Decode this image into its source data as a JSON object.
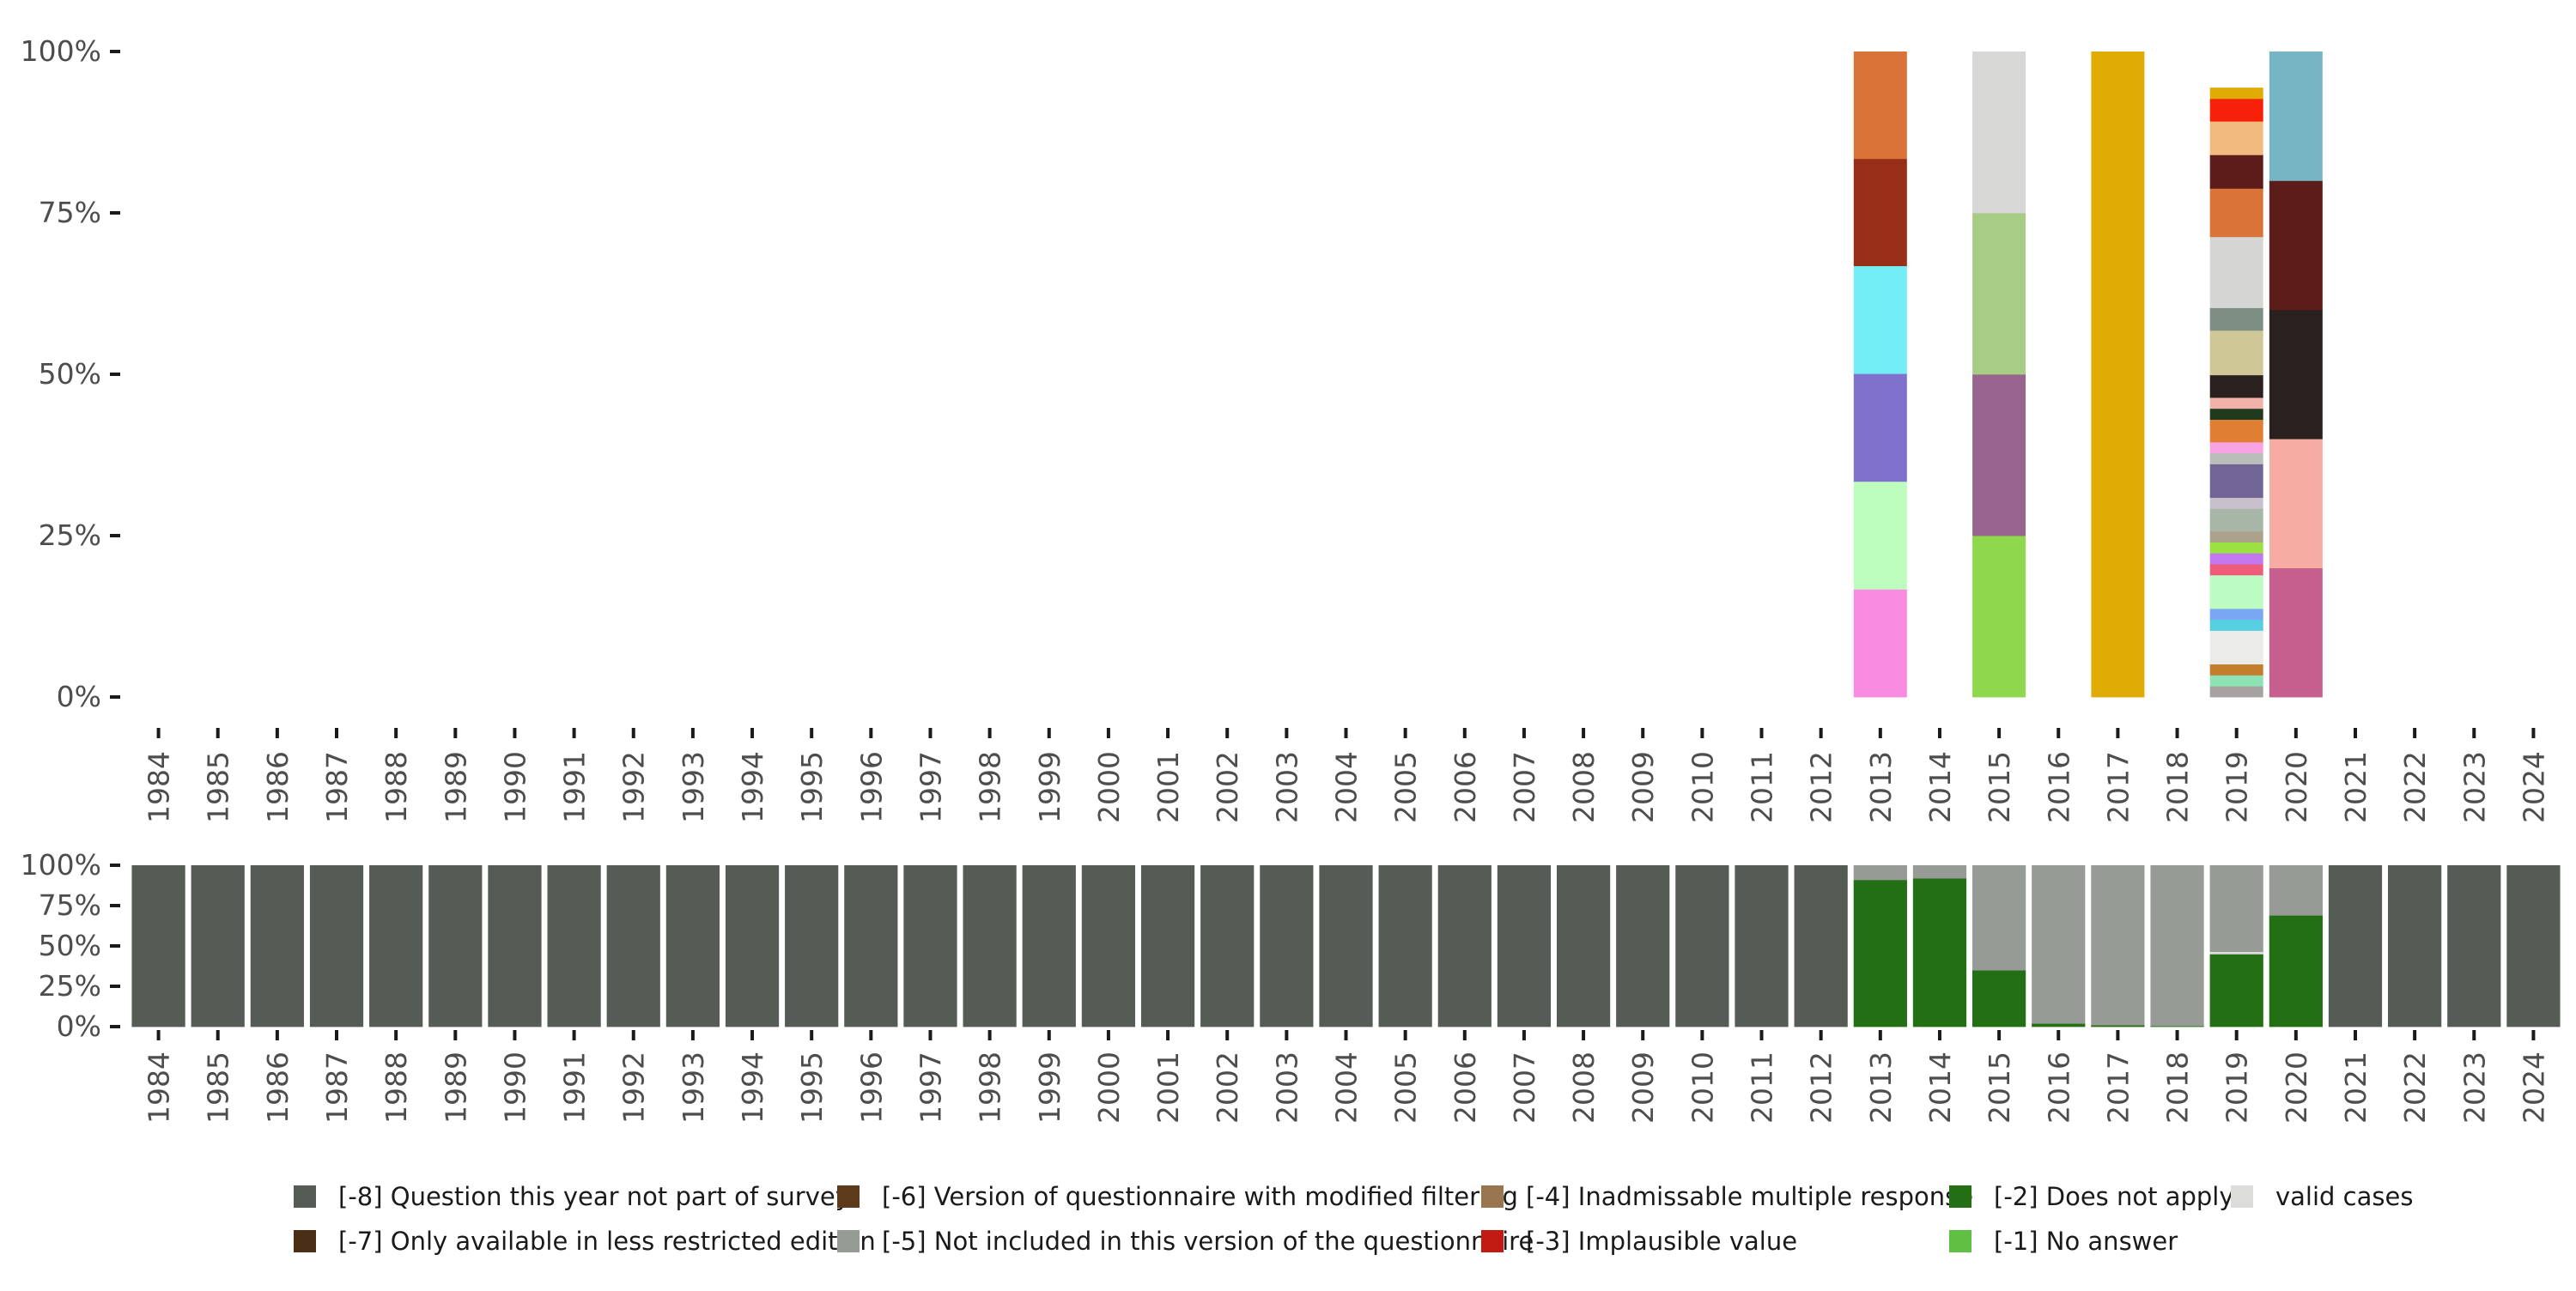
{
  "chart_data": [
    {
      "type": "bar",
      "stacked": true,
      "normalized": true,
      "ylim": [
        0,
        1
      ],
      "y_ticks": [
        "0%",
        "25%",
        "50%",
        "75%",
        "100%"
      ],
      "years": [
        "1984",
        "1985",
        "1986",
        "1987",
        "1988",
        "1989",
        "1990",
        "1991",
        "1992",
        "1993",
        "1994",
        "1995",
        "1996",
        "1997",
        "1998",
        "1999",
        "2000",
        "2001",
        "2002",
        "2003",
        "2004",
        "2005",
        "2006",
        "2007",
        "2008",
        "2009",
        "2010",
        "2011",
        "2012",
        "2013",
        "2014",
        "2015",
        "2016",
        "2017",
        "2018",
        "2019",
        "2020",
        "2021",
        "2022",
        "2023",
        "2024"
      ],
      "stacks": [
        {
          "year": "2013",
          "segments": [
            {
              "value": 0.167,
              "color": "#f98be1"
            },
            {
              "value": 0.167,
              "color": "#bdfebf"
            },
            {
              "value": 0.167,
              "color": "#8071cd"
            },
            {
              "value": 0.167,
              "color": "#73eef6"
            },
            {
              "value": 0.166,
              "color": "#982d18"
            },
            {
              "value": 0.166,
              "color": "#d97338"
            }
          ]
        },
        {
          "year": "2015",
          "segments": [
            {
              "value": 0.25,
              "color": "#8fd84d"
            },
            {
              "value": 0.25,
              "color": "#98638c"
            },
            {
              "value": 0.25,
              "color": "#a6cc86"
            },
            {
              "value": 0.25,
              "color": "#d7d7d5"
            }
          ]
        },
        {
          "year": "2017",
          "segments": [
            {
              "value": 1.0,
              "color": "#e0ac04"
            }
          ]
        },
        {
          "year": "2019",
          "segments": [
            {
              "value": 0.017,
              "color": "#a7a2a2"
            },
            {
              "value": 0.017,
              "color": "#8ee3b5"
            },
            {
              "value": 0.017,
              "color": "#c37d2d"
            },
            {
              "value": 0.052,
              "color": "#ebebea"
            },
            {
              "value": 0.017,
              "color": "#56d0e0"
            },
            {
              "value": 0.017,
              "color": "#7aa7f3"
            },
            {
              "value": 0.052,
              "color": "#bcfcc3"
            },
            {
              "value": 0.017,
              "color": "#ef5b7b"
            },
            {
              "value": 0.017,
              "color": "#c177ee"
            },
            {
              "value": 0.017,
              "color": "#9be043"
            },
            {
              "value": 0.017,
              "color": "#aca28c"
            },
            {
              "value": 0.035,
              "color": "#a8b6a8"
            },
            {
              "value": 0.017,
              "color": "#c8c0cc"
            },
            {
              "value": 0.052,
              "color": "#716595"
            },
            {
              "value": 0.017,
              "color": "#b9beb8"
            },
            {
              "value": 0.017,
              "color": "#f7a3e2"
            },
            {
              "value": 0.035,
              "color": "#e07f34"
            },
            {
              "value": 0.017,
              "color": "#1f3a1d"
            },
            {
              "value": 0.017,
              "color": "#f0b2a8"
            },
            {
              "value": 0.035,
              "color": "#2a211f"
            },
            {
              "value": 0.069,
              "color": "#cfc896"
            },
            {
              "value": 0.035,
              "color": "#7d8e85"
            },
            {
              "value": 0.11,
              "color": "#d5d5d3"
            },
            {
              "value": 0.075,
              "color": "#d97338"
            },
            {
              "value": 0.052,
              "color": "#5c1c19"
            },
            {
              "value": 0.052,
              "color": "#f2ba7e"
            },
            {
              "value": 0.035,
              "color": "#f62108"
            },
            {
              "value": 0.017,
              "color": "#e0ac04"
            }
          ]
        },
        {
          "year": "2020",
          "segments": [
            {
              "value": 0.2,
              "color": "#c65f8d"
            },
            {
              "value": 0.2,
              "color": "#f6aba3"
            },
            {
              "value": 0.2,
              "color": "#2a211f"
            },
            {
              "value": 0.2,
              "color": "#5c1c19"
            },
            {
              "value": 0.2,
              "color": "#76b6c4"
            }
          ]
        }
      ]
    },
    {
      "type": "bar",
      "stacked": true,
      "normalized": true,
      "ylim": [
        0,
        1
      ],
      "y_ticks": [
        "0%",
        "25%",
        "50%",
        "75%",
        "100%"
      ],
      "years": [
        "1984",
        "1985",
        "1986",
        "1987",
        "1988",
        "1989",
        "1990",
        "1991",
        "1992",
        "1993",
        "1994",
        "1995",
        "1996",
        "1997",
        "1998",
        "1999",
        "2000",
        "2001",
        "2002",
        "2003",
        "2004",
        "2005",
        "2006",
        "2007",
        "2008",
        "2009",
        "2010",
        "2011",
        "2012",
        "2013",
        "2014",
        "2015",
        "2016",
        "2017",
        "2018",
        "2019",
        "2020",
        "2021",
        "2022",
        "2023",
        "2024"
      ],
      "series": [
        {
          "key": "m8",
          "color": "#555b55",
          "values": [
            1,
            1,
            1,
            1,
            1,
            1,
            1,
            1,
            1,
            1,
            1,
            1,
            1,
            1,
            1,
            1,
            1,
            1,
            1,
            1,
            1,
            1,
            1,
            1,
            1,
            1,
            1,
            1,
            1,
            0,
            0,
            0,
            0,
            0,
            0,
            0,
            0,
            1,
            1,
            1,
            1
          ]
        },
        {
          "key": "m2",
          "color": "#226f14",
          "values": [
            0,
            0,
            0,
            0,
            0,
            0,
            0,
            0,
            0,
            0,
            0,
            0,
            0,
            0,
            0,
            0,
            0,
            0,
            0,
            0,
            0,
            0,
            0,
            0,
            0,
            0,
            0,
            0,
            0,
            0.91,
            0.92,
            0.35,
            0.02,
            0.01,
            0.005,
            0.45,
            0.69,
            0,
            0,
            0,
            0
          ]
        },
        {
          "key": "valid",
          "color": "#dcdcda",
          "values": [
            0,
            0,
            0,
            0,
            0,
            0,
            0,
            0,
            0,
            0,
            0,
            0,
            0,
            0,
            0,
            0,
            0,
            0,
            0,
            0,
            0,
            0,
            0,
            0,
            0,
            0,
            0,
            0,
            0,
            0,
            0,
            0,
            0,
            0,
            0,
            0.015,
            0,
            0,
            0,
            0,
            0
          ]
        },
        {
          "key": "m5",
          "color": "#979b95",
          "values": [
            0,
            0,
            0,
            0,
            0,
            0,
            0,
            0,
            0,
            0,
            0,
            0,
            0,
            0,
            0,
            0,
            0,
            0,
            0,
            0,
            0,
            0,
            0,
            0,
            0,
            0,
            0,
            0,
            0,
            0.09,
            0.08,
            0.65,
            0.98,
            0.99,
            0.995,
            0.535,
            0.31,
            0,
            0,
            0,
            0
          ]
        }
      ]
    }
  ],
  "legend": {
    "items": [
      {
        "label": "[-8] Question this year not part of survey",
        "color": "#555b55"
      },
      {
        "label": "[-7] Only available in less restricted edition",
        "color": "#4a2e15"
      },
      {
        "label": "[-6] Version of questionnaire with modified filtering",
        "color": "#5c3a1a"
      },
      {
        "label": "[-5] Not included in this version of the questionnaire",
        "color": "#979b95"
      },
      {
        "label": "[-4] Inadmissable multiple response",
        "color": "#9a7650"
      },
      {
        "label": "[-3] Implausible value",
        "color": "#c01a12"
      },
      {
        "label": "[-2] Does not apply",
        "color": "#226f14"
      },
      {
        "label": "[-1] No answer",
        "color": "#5fc043"
      },
      {
        "label": "valid cases",
        "color": "#dcdcda"
      }
    ]
  }
}
